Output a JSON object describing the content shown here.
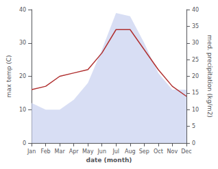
{
  "chart_data": {
    "type": "line",
    "xlabel": "date (month)",
    "ylabel": "max temp (C)",
    "y2label": "med. precipitation (kg/m2)",
    "categories": [
      "Jan",
      "Feb",
      "Mar",
      "Apr",
      "May",
      "Jun",
      "Jul",
      "Aug",
      "Sep",
      "Oct",
      "Nov",
      "Dec"
    ],
    "series": [
      {
        "type": "area",
        "axis": "y2",
        "color": "#c8d0f0",
        "values": [
          12,
          10,
          10,
          13,
          18,
          28,
          39,
          38,
          30,
          21,
          16,
          16
        ]
      },
      {
        "type": "line",
        "color": "#b03030",
        "values": [
          16,
          17,
          20,
          21,
          22,
          27,
          34,
          34,
          28,
          22,
          17,
          14
        ]
      }
    ],
    "ylim": [
      0,
      40
    ],
    "yticks": [
      0,
      10,
      20,
      30,
      40
    ],
    "y2lim": [
      0,
      40
    ],
    "y2ticks": [
      0,
      5,
      10,
      15,
      20,
      25,
      30,
      35,
      40
    ],
    "grid": false
  }
}
